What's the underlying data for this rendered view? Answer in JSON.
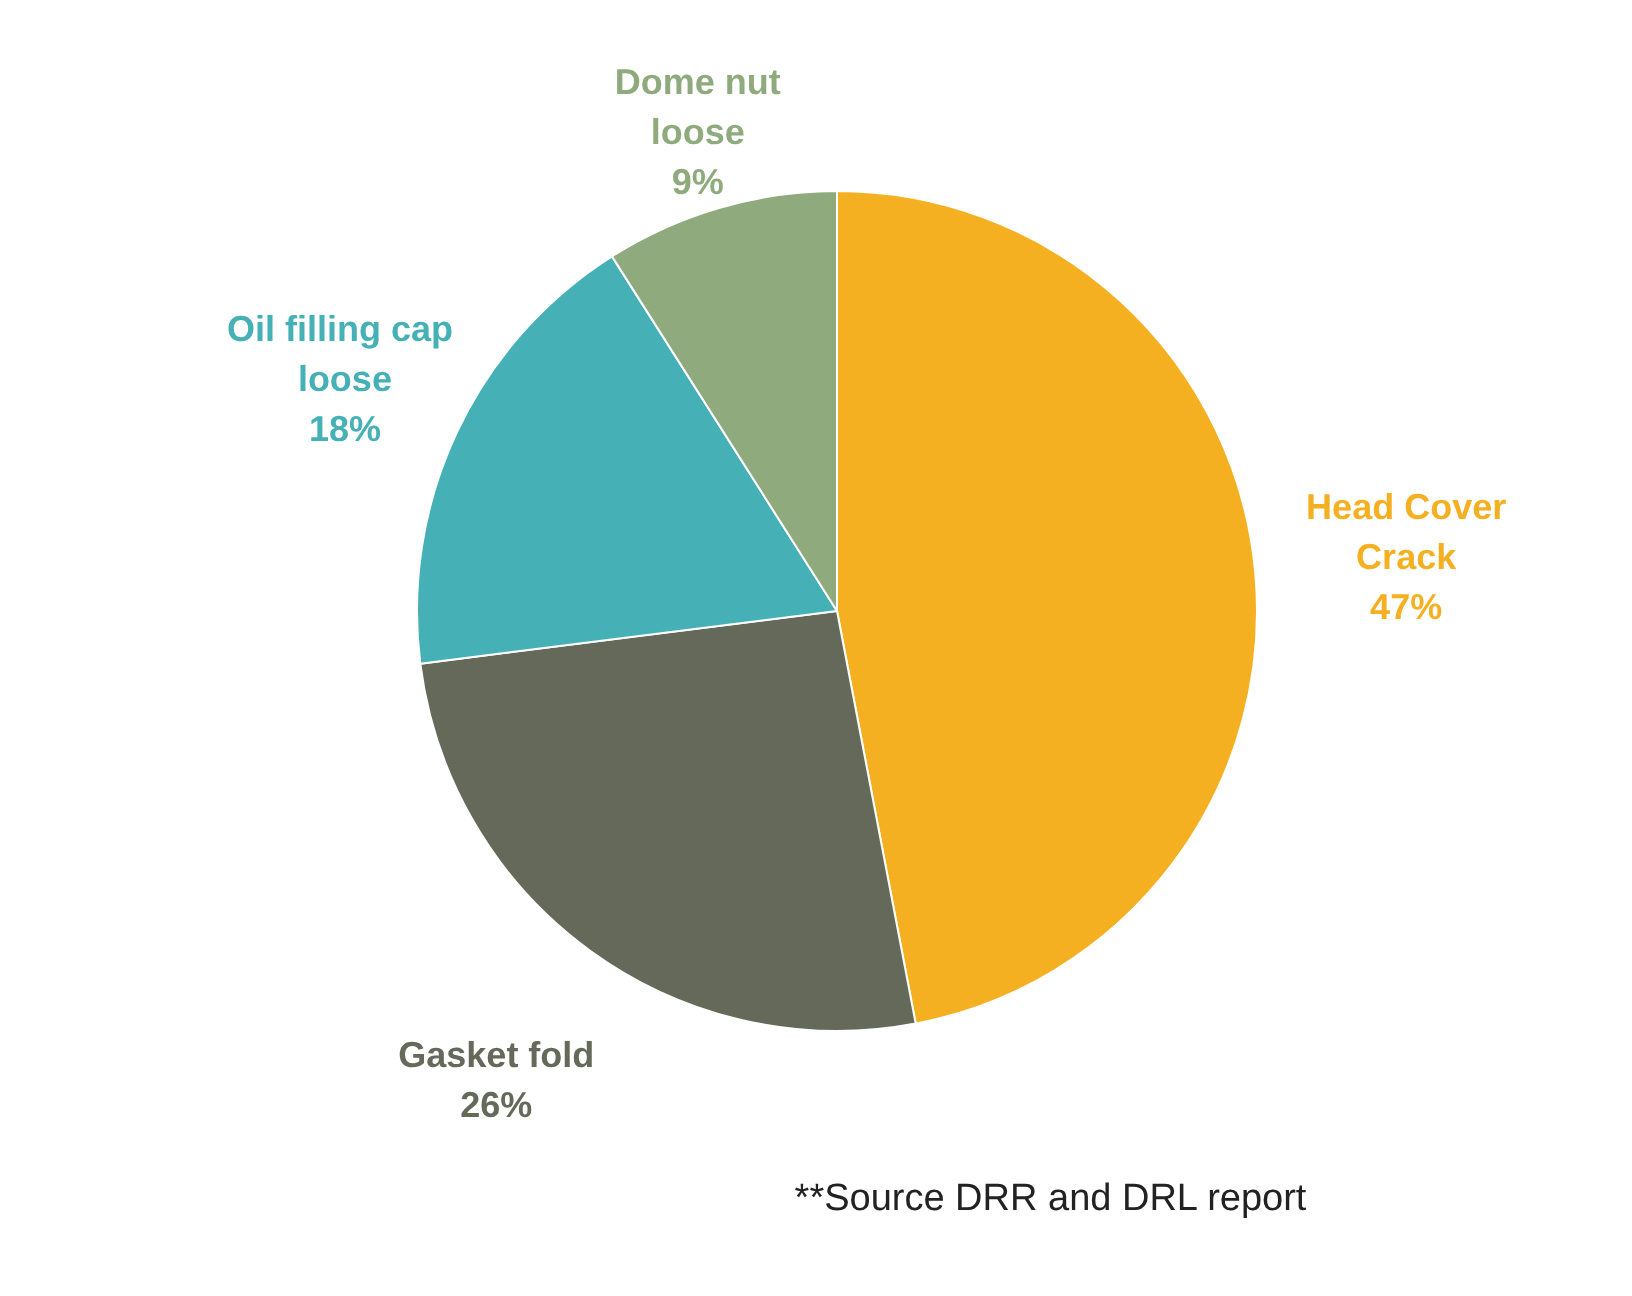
{
  "chart_data": {
    "type": "pie",
    "categories": [
      "Head Cover\nCrack",
      "Gasket fold",
      "Oil filling  cap\nloose",
      "Dome nut\nloose"
    ],
    "values": [
      47,
      26,
      18,
      9
    ],
    "colors": [
      "#f5b022",
      "#65695a",
      "#45b0b5",
      "#8fab7d"
    ],
    "value_labels": [
      "47%",
      "26%",
      "18%",
      "9%"
    ],
    "annotations": [
      "**Source DRR and DRL report"
    ]
  }
}
